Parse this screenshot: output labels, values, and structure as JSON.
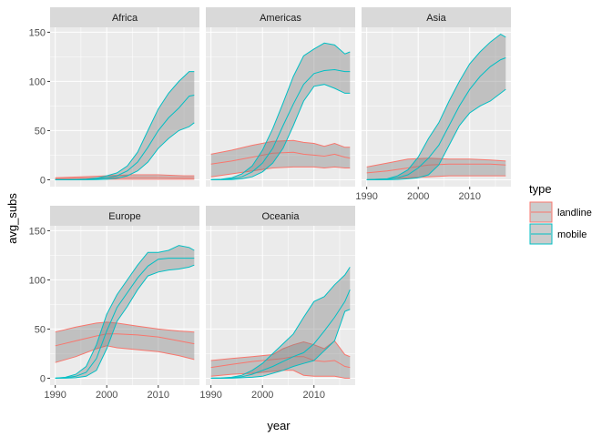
{
  "chart_data": {
    "type": "area",
    "facet_by": "continent",
    "panels": [
      {
        "title": "Africa",
        "series": [
          {
            "name": "landline",
            "x": [
              1990,
              1995,
              2000,
              2005,
              2010,
              2015,
              2017
            ],
            "mid": [
              1,
              1.5,
              2,
              2.5,
              2.5,
              2,
              2
            ],
            "lower": [
              0,
              0,
              0.5,
              0.5,
              0.5,
              0.5,
              0.5
            ],
            "upper": [
              2,
              3,
              4,
              5,
              5,
              4,
              4
            ]
          },
          {
            "name": "mobile",
            "x": [
              1990,
              1992,
              1994,
              1996,
              1998,
              2000,
              2002,
              2004,
              2006,
              2008,
              2010,
              2012,
              2014,
              2016,
              2017
            ],
            "mid": [
              0,
              0,
              0,
              0.3,
              0.8,
              2,
              4,
              9,
              18,
              33,
              50,
              63,
              73,
              85,
              86
            ],
            "lower": [
              0,
              0,
              0,
              0,
              0.2,
              0.5,
              1.5,
              4,
              9,
              18,
              32,
              42,
              50,
              54,
              58
            ],
            "upper": [
              0,
              0,
              0.2,
              0.6,
              1.5,
              4,
              7,
              14,
              28,
              50,
              72,
              88,
              100,
              110,
              110
            ]
          }
        ]
      },
      {
        "title": "Americas",
        "series": [
          {
            "name": "landline",
            "x": [
              1990,
              1994,
              1998,
              2002,
              2006,
              2008,
              2010,
              2012,
              2014,
              2016,
              2017
            ],
            "mid": [
              16,
              19,
              23,
              27,
              28,
              26,
              25,
              24,
              26,
              23,
              22
            ],
            "lower": [
              3,
              6,
              9,
              12,
              13,
              13,
              13,
              12,
              13,
              12,
              12
            ],
            "upper": [
              26,
              30,
              35,
              39,
              40,
              38,
              37,
              34,
              37,
              33,
              33
            ]
          },
          {
            "name": "mobile",
            "x": [
              1990,
              1992,
              1994,
              1996,
              1998,
              2000,
              2002,
              2004,
              2006,
              2008,
              2010,
              2012,
              2014,
              2016,
              2017
            ],
            "mid": [
              0,
              0.2,
              1,
              3,
              8,
              17,
              32,
              55,
              77,
              97,
              108,
              111,
              112,
              110,
              110
            ],
            "lower": [
              0,
              0,
              0.2,
              1,
              3,
              8,
              17,
              32,
              55,
              80,
              95,
              97,
              93,
              88,
              88
            ],
            "upper": [
              0,
              0.5,
              2,
              6,
              14,
              30,
              52,
              78,
              105,
              126,
              133,
              139,
              137,
              128,
              130
            ]
          }
        ]
      },
      {
        "title": "Asia",
        "series": [
          {
            "name": "landline",
            "x": [
              1990,
              1994,
              1998,
              2002,
              2006,
              2010,
              2014,
              2017
            ],
            "mid": [
              7,
              9,
              12,
              15,
              16,
              16,
              16,
              15
            ],
            "lower": [
              0,
              1,
              2,
              3,
              4,
              4,
              4,
              4
            ],
            "upper": [
              13,
              17,
              21,
              22,
              21,
              21,
              20,
              19
            ]
          },
          {
            "name": "mobile",
            "x": [
              1990,
              1992,
              1994,
              1996,
              1998,
              2000,
              2002,
              2004,
              2006,
              2008,
              2010,
              2012,
              2014,
              2016,
              2017
            ],
            "mid": [
              0,
              0,
              0.5,
              2,
              5,
              12,
              22,
              35,
              55,
              75,
              92,
              105,
              115,
              122,
              124
            ],
            "lower": [
              0,
              0,
              0,
              0.3,
              1,
              2,
              5,
              15,
              35,
              55,
              68,
              75,
              80,
              88,
              92
            ],
            "upper": [
              0,
              0.5,
              1,
              4,
              10,
              23,
              42,
              58,
              80,
              100,
              118,
              130,
              140,
              148,
              145
            ]
          }
        ]
      },
      {
        "title": "Europe",
        "series": [
          {
            "name": "landline",
            "x": [
              1990,
              1994,
              1998,
              2000,
              2002,
              2006,
              2010,
              2014,
              2017
            ],
            "mid": [
              33,
              38,
              43,
              45,
              45,
              44,
              42,
              38,
              35
            ],
            "lower": [
              16,
              22,
              30,
              33,
              31,
              29,
              27,
              23,
              19
            ],
            "upper": [
              47,
              52,
              56,
              57,
              56,
              53,
              50,
              48,
              47
            ]
          },
          {
            "name": "mobile",
            "x": [
              1990,
              1992,
              1994,
              1996,
              1998,
              2000,
              2002,
              2004,
              2006,
              2008,
              2010,
              2012,
              2014,
              2016,
              2017
            ],
            "mid": [
              0,
              0.5,
              2,
              6,
              20,
              48,
              72,
              87,
              102,
              114,
              121,
              122,
              122,
              122,
              122
            ],
            "lower": [
              0,
              0,
              0.5,
              2,
              8,
              30,
              58,
              73,
              90,
              104,
              108,
              110,
              111,
              113,
              115
            ],
            "upper": [
              0,
              1,
              4,
              12,
              34,
              65,
              85,
              100,
              115,
              128,
              128,
              130,
              135,
              133,
              130
            ]
          }
        ]
      },
      {
        "title": "Oceania",
        "series": [
          {
            "name": "landline",
            "x": [
              1990,
              1994,
              1998,
              2002,
              2004,
              2006,
              2008,
              2010,
              2012,
              2014,
              2016,
              2017
            ],
            "mid": [
              11,
              14,
              17,
              19,
              20,
              22,
              22,
              18,
              17,
              18,
              12,
              11
            ],
            "lower": [
              2,
              4,
              5,
              7,
              8,
              8,
              3,
              2,
              2,
              2,
              0,
              0
            ],
            "upper": [
              18,
              20,
              22,
              24,
              30,
              34,
              37,
              34,
              30,
              38,
              24,
              22
            ]
          },
          {
            "name": "mobile",
            "x": [
              1990,
              1992,
              1994,
              1996,
              1998,
              2000,
              2002,
              2004,
              2006,
              2008,
              2010,
              2012,
              2014,
              2016,
              2017
            ],
            "mid": [
              0,
              0,
              0.5,
              1.5,
              4,
              8,
              12,
              17,
              22,
              26,
              35,
              48,
              62,
              78,
              90
            ],
            "lower": [
              0,
              0,
              0,
              0.5,
              1,
              2,
              5,
              8,
              12,
              15,
              18,
              28,
              38,
              68,
              70
            ],
            "upper": [
              0,
              0.3,
              1,
              3,
              8,
              15,
              25,
              35,
              45,
              62,
              78,
              83,
              95,
              105,
              113
            ]
          }
        ]
      }
    ],
    "xlabel": "year",
    "ylabel": "avg_subs",
    "xlim": [
      1989,
      2018
    ],
    "ylim": [
      -7,
      155
    ],
    "x_ticks": [
      1990,
      2000,
      2010
    ],
    "y_ticks": [
      0,
      50,
      100,
      150
    ],
    "legend": {
      "title": "type",
      "placement": "right",
      "items": [
        "landline",
        "mobile"
      ]
    },
    "colors": {
      "landline": "#f8766d",
      "mobile": "#00bfc4",
      "ribbon_fill": "#7f7f7f",
      "panel_bg": "#ebebeb",
      "strip_bg": "#d9d9d9",
      "grid_major": "#ffffff"
    },
    "grid": true
  }
}
